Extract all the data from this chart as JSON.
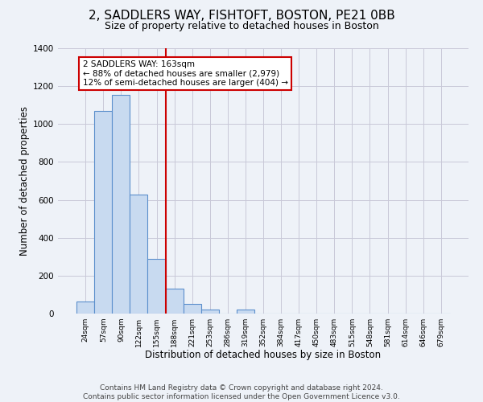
{
  "title": "2, SADDLERS WAY, FISHTOFT, BOSTON, PE21 0BB",
  "subtitle": "Size of property relative to detached houses in Boston",
  "xlabel": "Distribution of detached houses by size in Boston",
  "ylabel": "Number of detached properties",
  "bar_labels": [
    "24sqm",
    "57sqm",
    "90sqm",
    "122sqm",
    "155sqm",
    "188sqm",
    "221sqm",
    "253sqm",
    "286sqm",
    "319sqm",
    "352sqm",
    "384sqm",
    "417sqm",
    "450sqm",
    "483sqm",
    "515sqm",
    "548sqm",
    "581sqm",
    "614sqm",
    "646sqm",
    "679sqm"
  ],
  "bar_values": [
    65,
    1070,
    1155,
    630,
    290,
    130,
    50,
    20,
    0,
    20,
    0,
    0,
    0,
    0,
    0,
    0,
    0,
    0,
    0,
    0,
    0
  ],
  "bar_color": "#c8daf0",
  "bar_edge_color": "#5b8fcc",
  "grid_color": "#c8c8d8",
  "background_color": "#eef2f8",
  "vline_x": 4.5,
  "vline_color": "#cc0000",
  "annotation_text": "2 SADDLERS WAY: 163sqm\n← 88% of detached houses are smaller (2,979)\n12% of semi-detached houses are larger (404) →",
  "annotation_box_color": "#ffffff",
  "annotation_box_edge_color": "#cc0000",
  "ylim": [
    0,
    1400
  ],
  "yticks": [
    0,
    200,
    400,
    600,
    800,
    1000,
    1200,
    1400
  ],
  "footer_text": "Contains HM Land Registry data © Crown copyright and database right 2024.\nContains public sector information licensed under the Open Government Licence v3.0.",
  "title_fontsize": 11,
  "subtitle_fontsize": 9,
  "xlabel_fontsize": 8.5,
  "ylabel_fontsize": 8.5,
  "footer_fontsize": 6.5,
  "annotation_fontsize": 7.5
}
